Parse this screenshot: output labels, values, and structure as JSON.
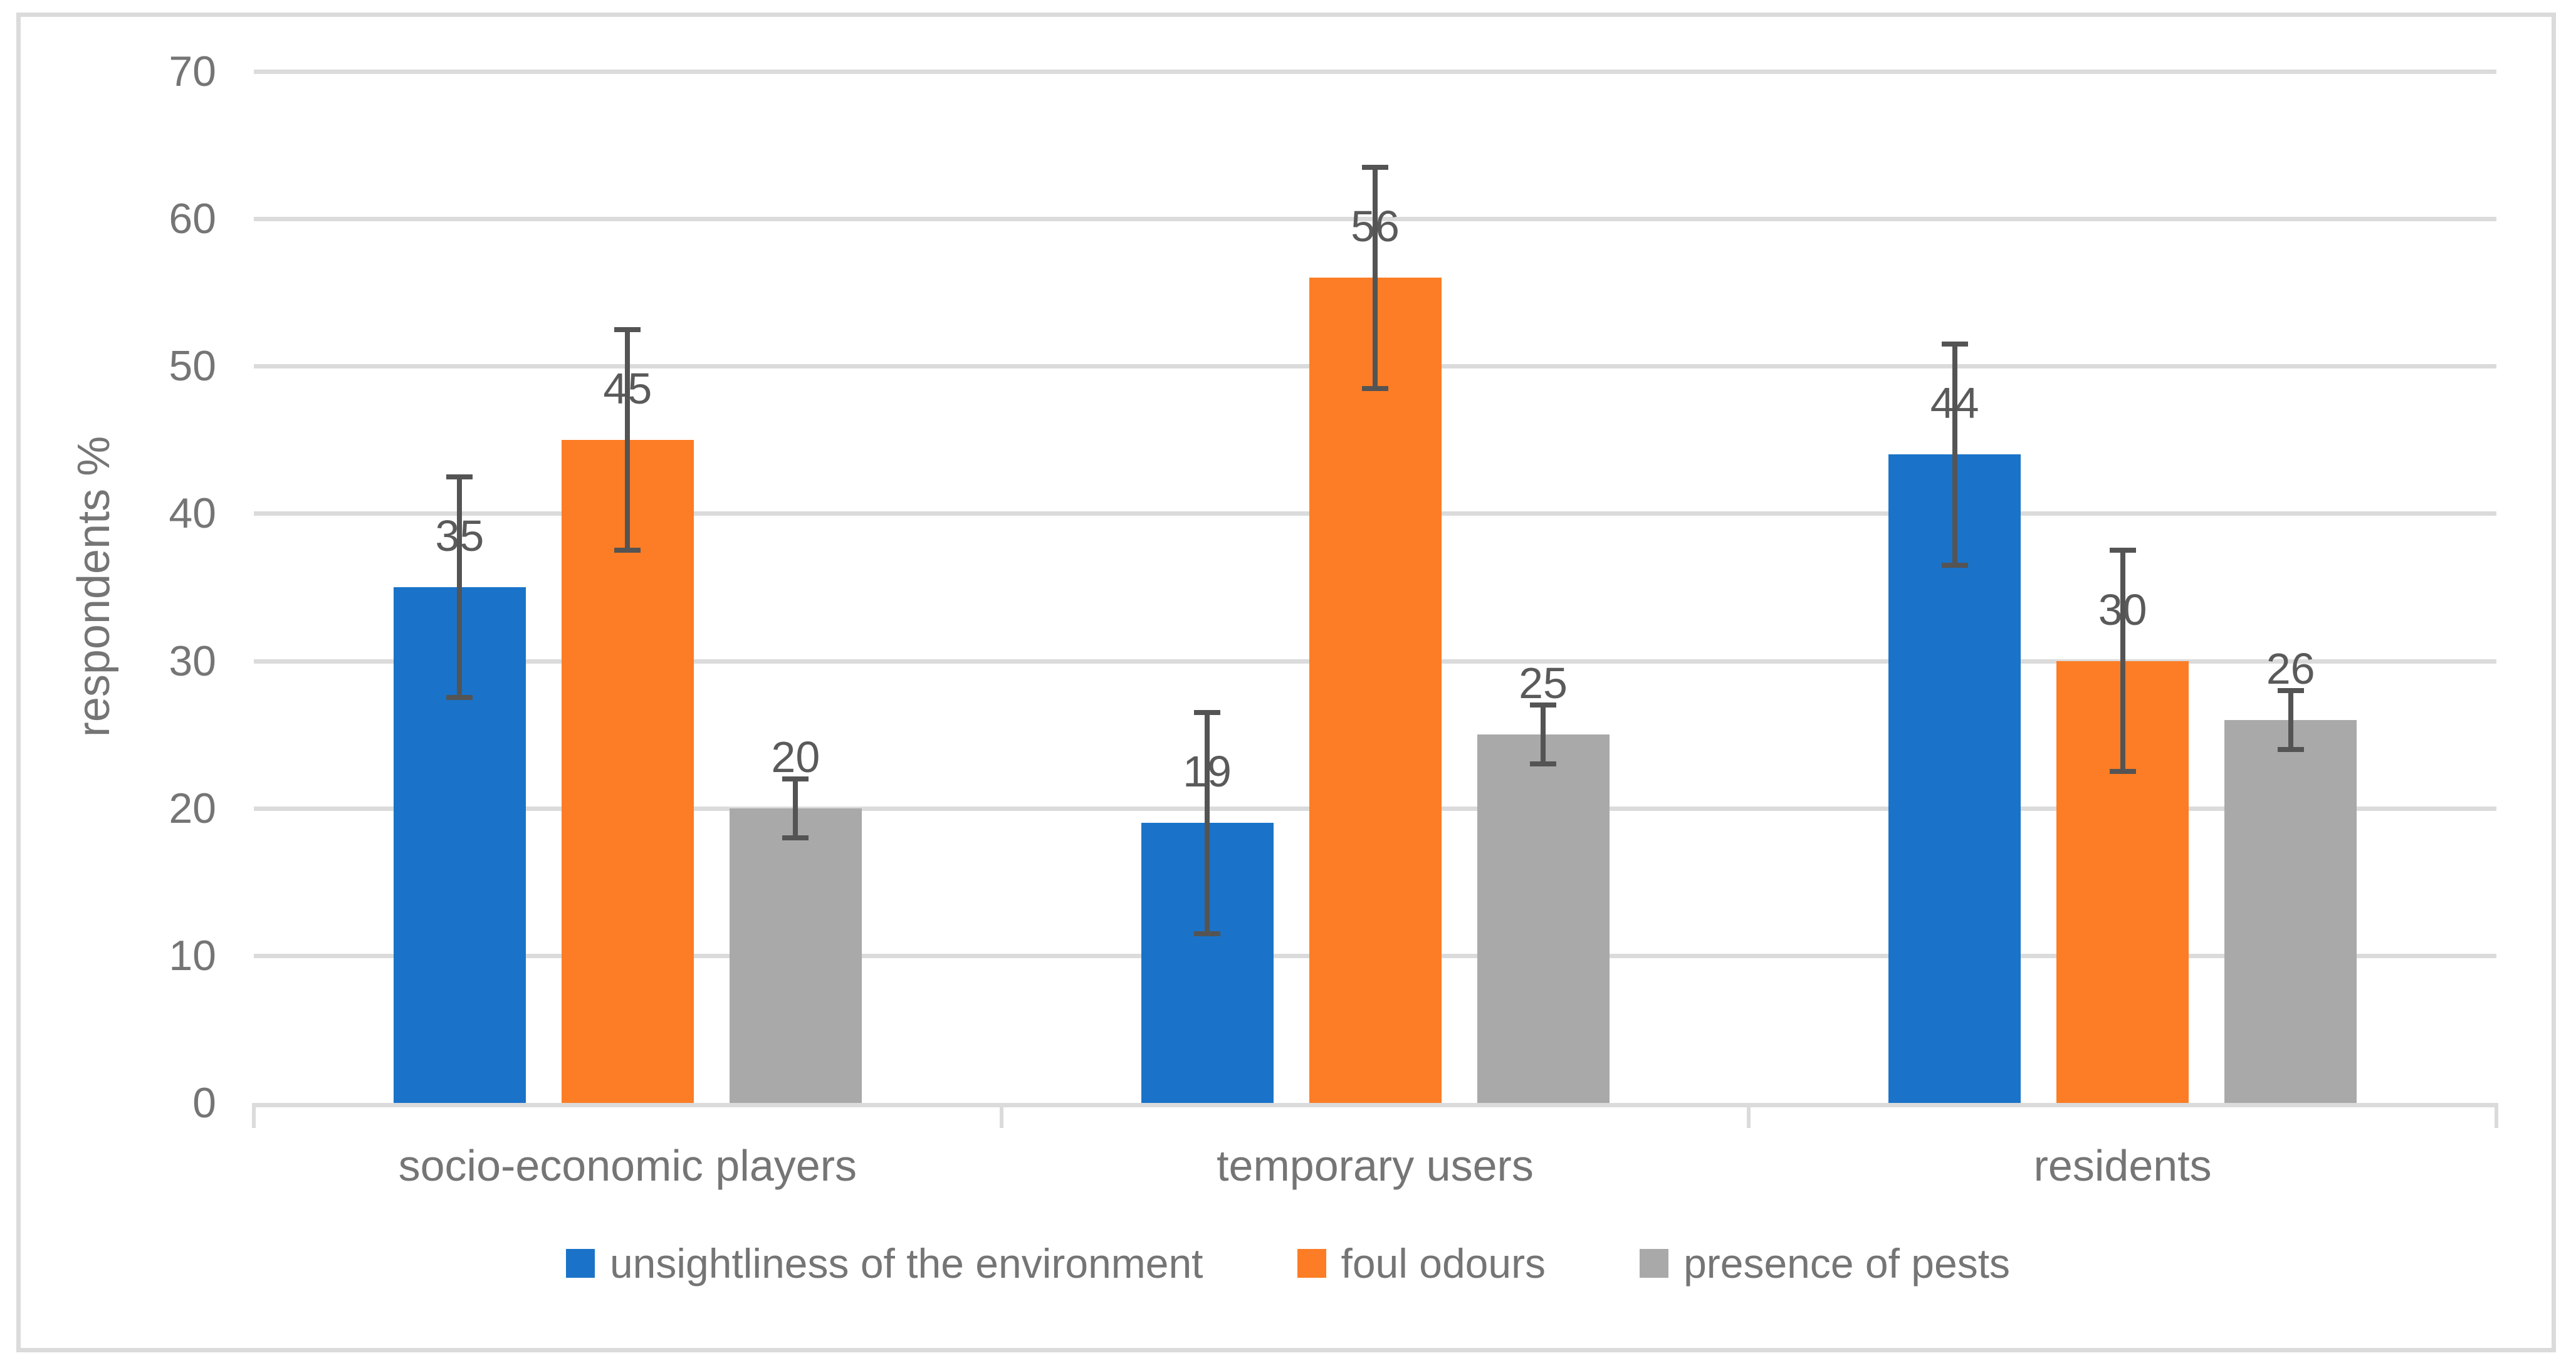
{
  "chart_data": {
    "type": "bar",
    "title": "",
    "ylabel": "respondents %",
    "xlabel": "",
    "ylim": [
      0,
      70
    ],
    "yticks": [
      0,
      10,
      20,
      30,
      40,
      50,
      60,
      70
    ],
    "grid": true,
    "legend_position": "bottom",
    "data_labels": true,
    "error_bars": true,
    "categories": [
      "socio-economic players",
      "temporary users",
      "residents"
    ],
    "series": [
      {
        "name": "unsightliness of the environment",
        "color": "#1A73C8",
        "values": [
          35,
          19,
          44
        ],
        "error_plus_minus": [
          7.5,
          7.5,
          7.5
        ]
      },
      {
        "name": "foul odours",
        "color": "#FC7D25",
        "values": [
          45,
          56,
          30
        ],
        "error_plus_minus": [
          7.5,
          7.5,
          7.5
        ]
      },
      {
        "name": "presence of pests",
        "color": "#A9A9A9",
        "values": [
          20,
          25,
          26
        ],
        "error_plus_minus": [
          2,
          2,
          2
        ]
      }
    ]
  },
  "style": {
    "grid_color": "#DBDBDB",
    "frame_border_color": "#DBDBDB",
    "axis_text_color": "#757575",
    "data_label_color": "#5A5A5A",
    "error_bar_color": "#545454",
    "background_color": "#FFFFFF"
  }
}
